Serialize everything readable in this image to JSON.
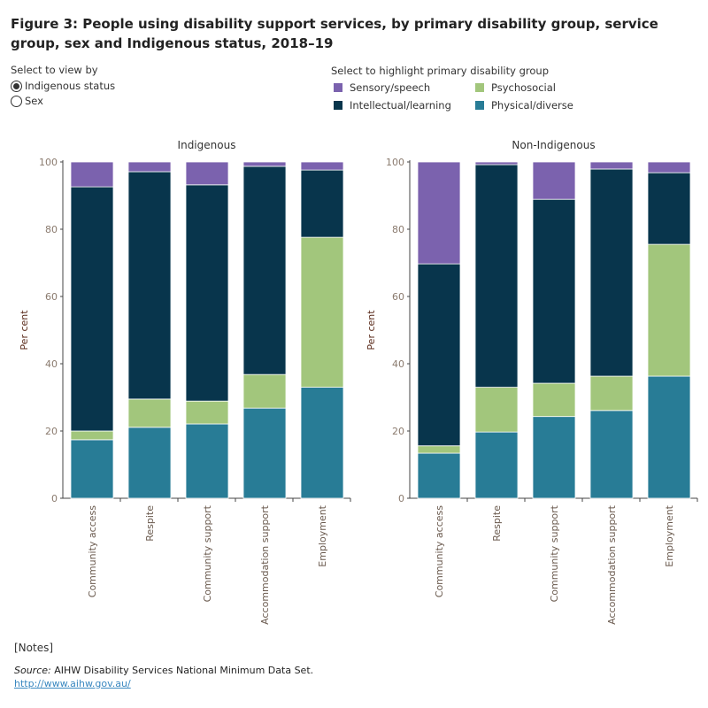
{
  "title": "Figure 3: People using disability support services, by primary disability group, service group, sex and Indigenous status, 2018–19",
  "view_selector": {
    "label": "Select to view by",
    "options": [
      {
        "label": "Indigenous status",
        "selected": true
      },
      {
        "label": "Sex",
        "selected": false
      }
    ]
  },
  "legend": {
    "label": "Select to highlight primary disability group",
    "items": [
      {
        "label": "Sensory/speech",
        "color": "#7b62ae"
      },
      {
        "label": "Psychosocial",
        "color": "#a2c67c"
      },
      {
        "label": "Intellectual/learning",
        "color": "#08354c"
      },
      {
        "label": "Physical/diverse",
        "color": "#287c96"
      }
    ]
  },
  "chart_data": [
    {
      "type": "bar",
      "stacked": true,
      "title": "Indigenous",
      "ylabel": "Per cent",
      "ylim": [
        0,
        100
      ],
      "yticks": [
        0,
        20,
        40,
        60,
        80,
        100
      ],
      "categories": [
        "Community access",
        "Respite",
        "Community support",
        "Accommodation support",
        "Employment"
      ],
      "series": [
        {
          "name": "Physical/diverse",
          "values": [
            17.4,
            21.1,
            22.1,
            26.8,
            33.0
          ]
        },
        {
          "name": "Psychosocial",
          "values": [
            2.6,
            8.4,
            6.8,
            10.0,
            44.6
          ]
        },
        {
          "name": "Intellectual/learning",
          "values": [
            72.6,
            67.6,
            64.3,
            61.9,
            20.0
          ]
        },
        {
          "name": "Sensory/speech",
          "values": [
            7.4,
            2.9,
            6.8,
            1.3,
            2.4
          ]
        }
      ]
    },
    {
      "type": "bar",
      "stacked": true,
      "title": "Non-Indigenous",
      "ylabel": "Per cent",
      "ylim": [
        0,
        100
      ],
      "yticks": [
        0,
        20,
        40,
        60,
        80,
        100
      ],
      "categories": [
        "Community access",
        "Respite",
        "Community support",
        "Accommodation support",
        "Employment"
      ],
      "series": [
        {
          "name": "Physical/diverse",
          "values": [
            13.4,
            19.7,
            24.3,
            26.1,
            36.3
          ]
        },
        {
          "name": "Psychosocial",
          "values": [
            2.2,
            13.3,
            9.9,
            10.2,
            39.2
          ]
        },
        {
          "name": "Intellectual/learning",
          "values": [
            54.1,
            66.2,
            54.7,
            61.6,
            21.3
          ]
        },
        {
          "name": "Sensory/speech",
          "values": [
            30.3,
            0.8,
            11.1,
            2.1,
            3.2
          ]
        }
      ]
    }
  ],
  "footer": {
    "notes": "[Notes]",
    "source_label": "Source:",
    "source_text": " AIHW Disability Services National Minimum Data Set.",
    "link": "http://www.aihw.gov.au/"
  }
}
